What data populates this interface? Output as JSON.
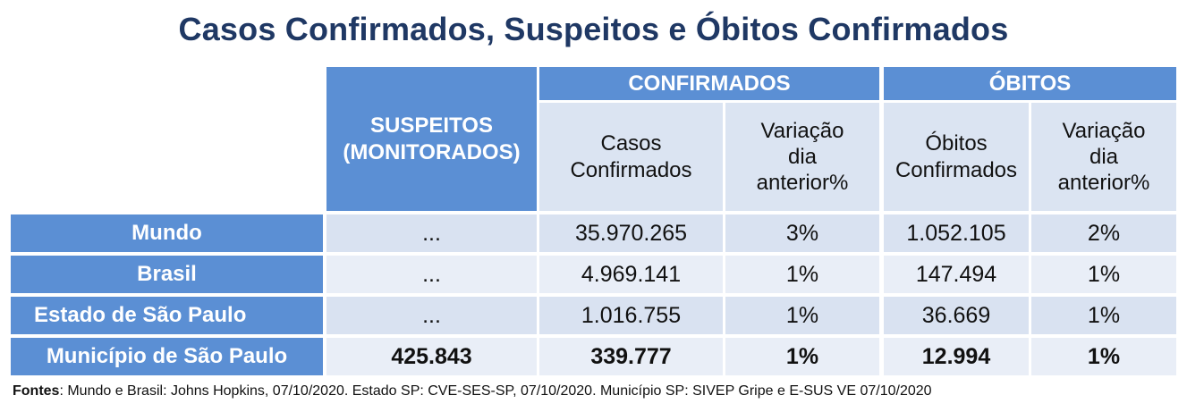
{
  "title": "Casos Confirmados, Suspeitos e Óbitos Confirmados",
  "headers": {
    "suspeitos": "SUSPEITOS\n(MONITORADOS)",
    "confirmados_group": "CONFIRMADOS",
    "obitos_group": "ÓBITOS",
    "casos_confirmados": "Casos\nConfirmados",
    "variacao_confirmados": "Variação\ndia\nanterior%",
    "obitos_confirmados": "Óbitos\nConfirmados",
    "variacao_obitos": "Variação\ndia\nanterior%"
  },
  "rows": [
    {
      "label": "Mundo",
      "suspeitos": "...",
      "casos_confirmados": "35.970.265",
      "variacao_confirmados": "3%",
      "obitos_confirmados": "1.052.105",
      "variacao_obitos": "2%"
    },
    {
      "label": "Brasil",
      "suspeitos": "...",
      "casos_confirmados": "4.969.141",
      "variacao_confirmados": "1%",
      "obitos_confirmados": "147.494",
      "variacao_obitos": "1%"
    },
    {
      "label": "Estado de São Paulo",
      "suspeitos": "...",
      "casos_confirmados": "1.016.755",
      "variacao_confirmados": "1%",
      "obitos_confirmados": "36.669",
      "variacao_obitos": "1%"
    },
    {
      "label": "Município de São Paulo",
      "suspeitos": "425.843",
      "casos_confirmados": "339.777",
      "variacao_confirmados": "1%",
      "obitos_confirmados": "12.994",
      "variacao_obitos": "1%"
    }
  ],
  "footer": {
    "label": "Fontes",
    "text": ": Mundo e Brasil: Johns Hopkins, 07/10/2020. Estado SP: CVE-SES-SP, 07/10/2020. Município SP: SIVEP Gripe  e  E-SUS VE 07/10/2020"
  },
  "colors": {
    "header_blue": "#5b8fd4",
    "title_navy": "#1f3864",
    "cell_light": "#d9e2f1",
    "cell_pale": "#e9eef7"
  }
}
